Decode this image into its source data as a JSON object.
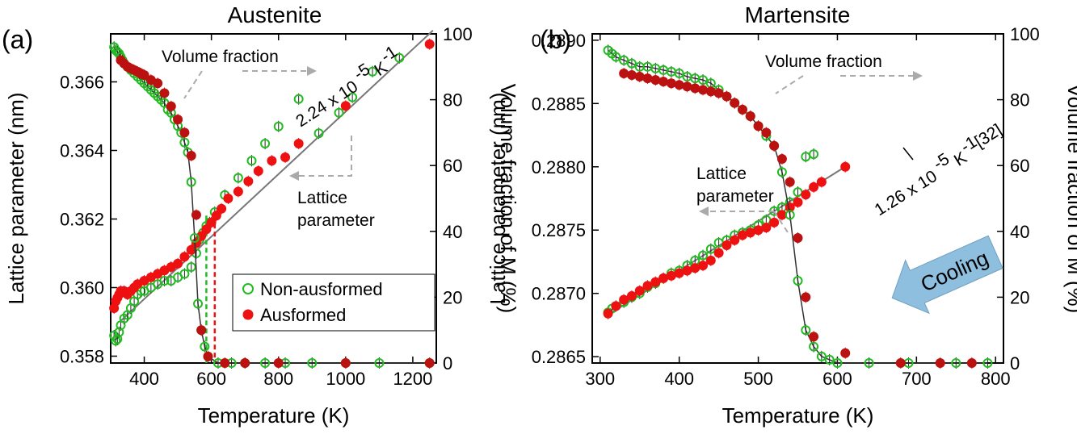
{
  "chart_data": [
    {
      "type": "scatter",
      "panel_label": "(a)",
      "title": "Austenite",
      "xlabel": "Temperature (K)",
      "ylabel": "Lattice parameter (nm)",
      "y2label": "Volume fraction of M (%)",
      "xlim": [
        300,
        1270
      ],
      "ylim": [
        0.3578,
        0.3674
      ],
      "y2lim": [
        0,
        100
      ],
      "xticks": [
        400,
        600,
        800,
        1000,
        1200
      ],
      "yticks": [
        0.358,
        0.36,
        0.362,
        0.364,
        0.366
      ],
      "y2ticks": [
        0,
        20,
        40,
        60,
        80,
        100
      ],
      "legend": {
        "position": "bottom-right",
        "entries": [
          "Non-ausformed",
          "Ausformed"
        ]
      },
      "colors": {
        "non_ausformed": "#22bb22",
        "ausformed": "#ee1111",
        "fit": "#777777"
      },
      "annotations": {
        "volume_fraction": "Volume fraction",
        "lattice_parameter_line1": "Lattice",
        "lattice_parameter_line2": "parameter",
        "slope_prefix": "2.24 x 10",
        "slope_exp": "-5",
        "slope_unit": "K",
        "slope_unit_exp": "-1"
      },
      "fit_line": {
        "x": [
          330,
          1260
        ],
        "y": [
          0.35903,
          0.3675
        ]
      },
      "vlines": [
        {
          "x": 585,
          "color": "#22bb22"
        },
        {
          "x": 610,
          "color": "#ee1111"
        }
      ],
      "series": [
        {
          "name": "Non-ausformed",
          "axis": "left",
          "kind": "lattice",
          "x": [
            310,
            315,
            320,
            325,
            330,
            340,
            350,
            360,
            370,
            380,
            390,
            400,
            420,
            440,
            460,
            480,
            500,
            520,
            540,
            555,
            565,
            575,
            585,
            595,
            610,
            640,
            680,
            720,
            760,
            800,
            860,
            920,
            980,
            1020,
            1080,
            1160
          ],
          "y": [
            0.3586,
            0.35845,
            0.3585,
            0.3587,
            0.3589,
            0.3591,
            0.3592,
            0.3594,
            0.3596,
            0.3598,
            0.3599,
            0.3599,
            0.36,
            0.3601,
            0.3602,
            0.3602,
            0.3603,
            0.3604,
            0.3606,
            0.361,
            0.3614,
            0.3616,
            0.3618,
            0.3619,
            0.3622,
            0.3627,
            0.3632,
            0.3637,
            0.3642,
            0.3647,
            0.3655,
            0.3645,
            0.3651,
            0.36555,
            0.3663,
            0.3667
          ]
        },
        {
          "name": "Ausformed",
          "axis": "left",
          "kind": "lattice",
          "x": [
            310,
            315,
            320,
            325,
            330,
            340,
            350,
            360,
            370,
            380,
            400,
            420,
            440,
            460,
            480,
            500,
            520,
            540,
            555,
            570,
            585,
            600,
            615,
            630,
            650,
            680,
            710,
            740,
            780,
            820,
            860,
            1000,
            1250
          ],
          "y": [
            0.3594,
            0.3596,
            0.3597,
            0.3598,
            0.3599,
            0.3599,
            0.3598,
            0.3599,
            0.36,
            0.3601,
            0.3602,
            0.3603,
            0.3604,
            0.3605,
            0.3606,
            0.3607,
            0.3609,
            0.3611,
            0.3613,
            0.3615,
            0.3617,
            0.3619,
            0.3621,
            0.3623,
            0.3626,
            0.3628,
            0.3631,
            0.3634,
            0.3637,
            0.3638,
            0.3642,
            0.3653,
            0.3671
          ]
        },
        {
          "name": "Non-ausformed",
          "axis": "right",
          "kind": "fraction",
          "x": [
            310,
            315,
            320,
            325,
            330,
            335,
            340,
            350,
            360,
            370,
            380,
            390,
            400,
            410,
            420,
            430,
            440,
            450,
            460,
            470,
            480,
            490,
            500,
            510,
            520,
            530,
            540,
            550,
            560,
            570,
            580,
            590,
            620,
            660,
            700,
            760,
            820,
            900,
            1000,
            1100,
            1250
          ],
          "y": [
            96,
            95,
            94.5,
            94,
            93,
            92,
            91,
            90,
            89,
            88,
            87,
            86,
            85,
            84,
            83,
            82,
            81,
            80,
            79,
            77,
            76,
            74,
            72,
            70,
            67,
            64,
            55,
            38,
            18,
            10,
            5,
            2,
            0,
            0,
            0,
            0,
            0,
            0,
            0,
            0,
            0
          ]
        },
        {
          "name": "Ausformed",
          "axis": "right",
          "kind": "fraction",
          "x": [
            330,
            340,
            350,
            360,
            370,
            380,
            390,
            400,
            420,
            440,
            460,
            480,
            500,
            520,
            540,
            555,
            570,
            590,
            640,
            700,
            800,
            1000,
            1250
          ],
          "y": [
            92,
            91,
            90,
            89.5,
            89,
            88.5,
            88,
            87.5,
            86,
            85,
            82,
            78,
            74,
            70,
            63,
            45,
            10,
            2,
            0,
            0,
            0,
            0,
            0
          ]
        }
      ]
    },
    {
      "type": "scatter",
      "panel_label": "(b)",
      "title": "Martensite",
      "xlabel": "Temperature (K)",
      "ylabel": "Lattice parameter (nm)",
      "y2label": "Volume fraction of M (%)",
      "xlim": [
        290,
        810
      ],
      "ylim": [
        0.28645,
        0.28905
      ],
      "y2lim": [
        0,
        100
      ],
      "xticks": [
        300,
        400,
        500,
        600,
        700,
        800
      ],
      "yticks": [
        0.2865,
        0.287,
        0.2875,
        0.288,
        0.2885,
        0.289
      ],
      "y2ticks": [
        0,
        20,
        40,
        60,
        80,
        100
      ],
      "arrow_label": "Cooling",
      "colors": {
        "non_ausformed": "#22bb22",
        "ausformed": "#ee1111",
        "fit": "#777777",
        "arrow": "#8fbfdf"
      },
      "annotations": {
        "volume_fraction": "Volume fraction",
        "lattice_parameter_line1": "Lattice",
        "lattice_parameter_line2": "parameter",
        "slope_prefix": "1.26 x 10",
        "slope_exp": "-5",
        "slope_unit": "K",
        "slope_unit_exp": "-1",
        "ref": "[32]"
      },
      "fit_line": {
        "x": [
          310,
          615
        ],
        "y": [
          0.28683,
          0.28802
        ]
      },
      "series": [
        {
          "name": "Non-ausformed",
          "axis": "left",
          "kind": "lattice",
          "x": [
            310,
            315,
            320,
            330,
            340,
            350,
            360,
            370,
            380,
            390,
            400,
            410,
            420,
            430,
            440,
            450,
            460,
            470,
            480,
            490,
            500,
            510,
            520,
            530,
            540,
            550,
            560,
            570
          ],
          "y": [
            0.28685,
            0.28688,
            0.2869,
            0.28693,
            0.28697,
            0.287,
            0.28705,
            0.28708,
            0.28712,
            0.28716,
            0.28718,
            0.28722,
            0.28726,
            0.2873,
            0.28735,
            0.2874,
            0.28742,
            0.28746,
            0.28748,
            0.2875,
            0.28754,
            0.28758,
            0.28765,
            0.28768,
            0.28772,
            0.2878,
            0.28808,
            0.2881
          ]
        },
        {
          "name": "Ausformed",
          "axis": "left",
          "kind": "lattice",
          "x": [
            310,
            320,
            330,
            340,
            350,
            360,
            370,
            380,
            390,
            400,
            410,
            420,
            430,
            440,
            450,
            460,
            470,
            480,
            490,
            500,
            510,
            520,
            530,
            540,
            550,
            560,
            570,
            580,
            610
          ],
          "y": [
            0.28684,
            0.2869,
            0.28695,
            0.28698,
            0.28702,
            0.28706,
            0.28709,
            0.28712,
            0.28714,
            0.28716,
            0.28718,
            0.2872,
            0.28722,
            0.28726,
            0.28732,
            0.28738,
            0.28742,
            0.28746,
            0.28748,
            0.2875,
            0.28752,
            0.28756,
            0.28762,
            0.28768,
            0.28772,
            0.28778,
            0.28784,
            0.28788,
            0.288
          ]
        },
        {
          "name": "Non-ausformed",
          "axis": "right",
          "kind": "fraction",
          "x": [
            310,
            315,
            320,
            330,
            340,
            350,
            360,
            370,
            380,
            390,
            400,
            410,
            420,
            430,
            440,
            450,
            460,
            470,
            480,
            490,
            500,
            510,
            520,
            530,
            540,
            550,
            560,
            570,
            580,
            590,
            600,
            640,
            690,
            750,
            790
          ],
          "y": [
            95,
            94,
            93,
            92,
            91,
            90,
            90,
            89.5,
            89,
            88.5,
            88,
            87,
            86.5,
            86,
            85,
            83,
            81,
            79,
            77,
            75,
            72,
            69,
            66,
            58,
            45,
            25,
            10,
            5,
            2,
            1,
            0,
            0,
            0,
            0,
            0
          ]
        },
        {
          "name": "Ausformed",
          "axis": "right",
          "kind": "fraction",
          "x": [
            330,
            340,
            350,
            360,
            370,
            380,
            390,
            400,
            410,
            420,
            430,
            440,
            450,
            460,
            470,
            480,
            490,
            500,
            510,
            520,
            530,
            540,
            550,
            560,
            570,
            610,
            680,
            730,
            770
          ],
          "y": [
            88,
            87.5,
            87,
            86.5,
            86,
            85.5,
            85,
            84.5,
            84,
            83.5,
            83,
            82.5,
            82,
            81,
            79,
            77,
            75,
            72,
            70,
            66,
            62,
            55,
            38,
            20,
            8,
            3,
            0,
            0,
            0
          ]
        }
      ]
    }
  ]
}
